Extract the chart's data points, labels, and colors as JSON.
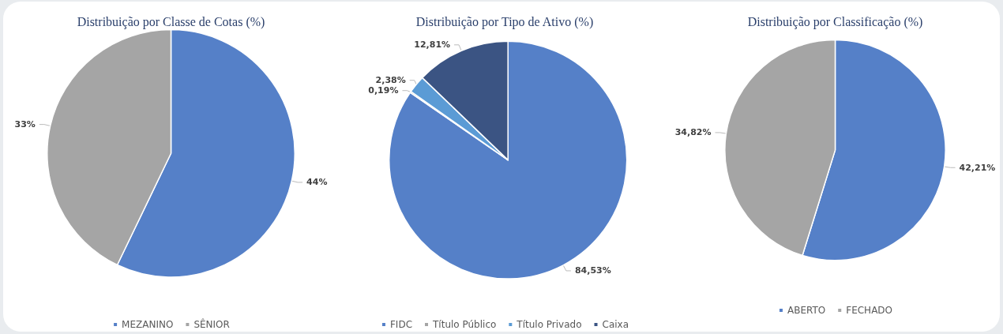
{
  "chart_data": [
    {
      "type": "pie",
      "title": "Distribuição por Classe de Cotas (%)",
      "categories": [
        "MEZANINO",
        "SÊNIOR"
      ],
      "values": [
        44,
        33
      ],
      "value_labels": [
        "44%",
        "33%"
      ],
      "colors": [
        "#5580c8",
        "#a5a5a5"
      ],
      "legend": "bottom"
    },
    {
      "type": "pie",
      "title": "Distribuição por Tipo de Ativo (%)",
      "categories": [
        "FIDC",
        "Título Público",
        "Título Privado",
        "Caixa"
      ],
      "values": [
        84.53,
        0.19,
        2.38,
        12.81
      ],
      "value_labels": [
        "84,53%",
        "0,19%",
        "2,38%",
        "12,81%"
      ],
      "colors": [
        "#5580c8",
        "#a5a5a5",
        "#5b9bd5",
        "#3b5483"
      ],
      "legend": "bottom"
    },
    {
      "type": "pie",
      "title": "Distribuição por Classificação (%)",
      "categories": [
        "ABERTO",
        "FECHADO"
      ],
      "values": [
        42.21,
        34.82
      ],
      "value_labels": [
        "42,21%",
        "34,82%"
      ],
      "colors": [
        "#5580c8",
        "#a5a5a5"
      ],
      "legend": "bottom"
    }
  ]
}
